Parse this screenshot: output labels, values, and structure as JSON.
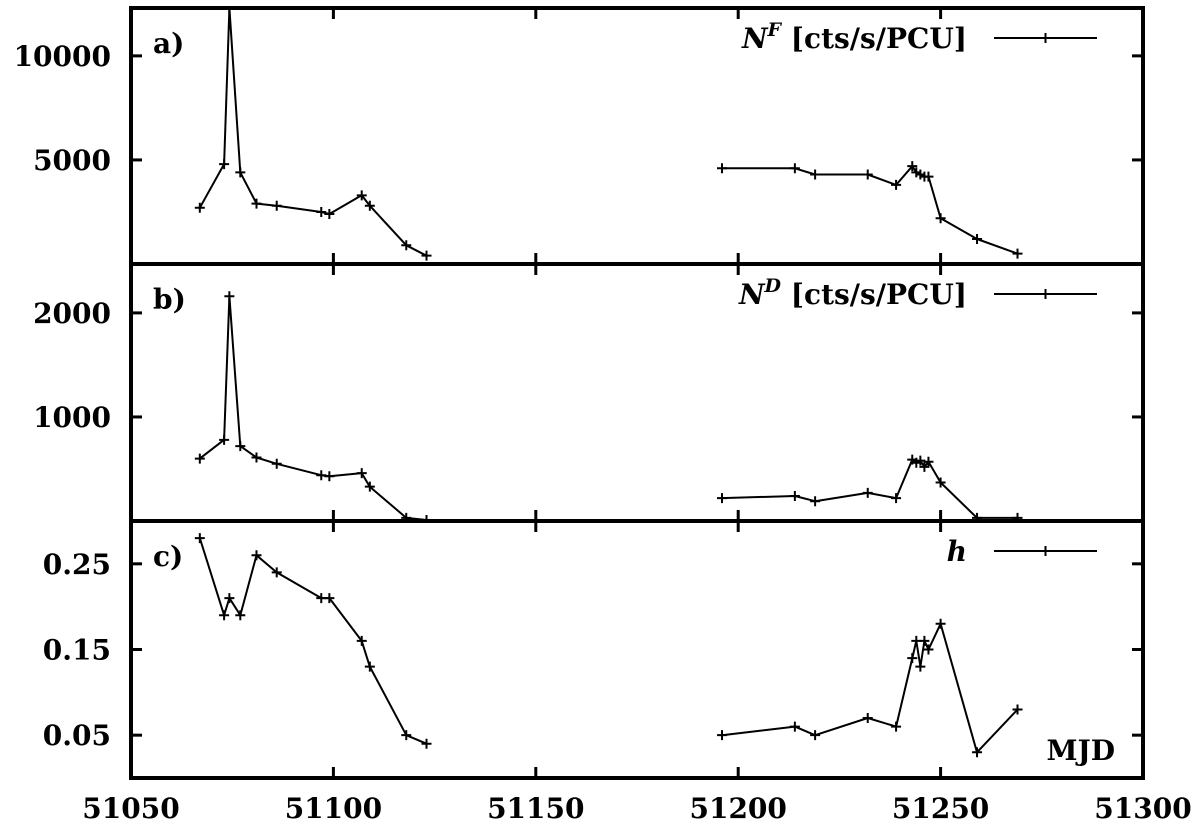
{
  "chart_data": [
    {
      "panel": "a",
      "type": "line",
      "panel_label": "a)",
      "legend": {
        "symbol": "N",
        "superscript": "F",
        "unit": " [cts/s/PCU]",
        "position": "top-right"
      },
      "ylim": [
        0,
        12300
      ],
      "yticks": [
        5000,
        10000
      ],
      "ytick_labels": [
        "5000",
        "10000"
      ],
      "segments": [
        [
          [
            51067,
            2700
          ],
          [
            51073,
            4800
          ],
          [
            51074.3,
            12300
          ],
          [
            51077,
            4400
          ],
          [
            51081,
            2900
          ],
          [
            51086,
            2800
          ],
          [
            51097,
            2500
          ],
          [
            51099,
            2400
          ],
          [
            51107,
            3300
          ],
          [
            51109,
            2800
          ],
          [
            51118,
            900
          ],
          [
            51123,
            400
          ]
        ],
        [
          [
            51196,
            4600
          ],
          [
            51214,
            4600
          ],
          [
            51219,
            4300
          ],
          [
            51232,
            4300
          ],
          [
            51239,
            3800
          ],
          [
            51243,
            4700
          ],
          [
            51244,
            4400
          ],
          [
            51245,
            4300
          ],
          [
            51246,
            4200
          ],
          [
            51247,
            4200
          ],
          [
            51250,
            2200
          ],
          [
            51259,
            1200
          ],
          [
            51269,
            500
          ]
        ]
      ]
    },
    {
      "panel": "b",
      "type": "line",
      "panel_label": "b)",
      "legend": {
        "symbol": "N",
        "superscript": "D",
        "unit": " [cts/s/PCU]",
        "position": "top-right"
      },
      "ylim": [
        0,
        2470
      ],
      "yticks": [
        1000,
        2000
      ],
      "ytick_labels": [
        "1000",
        "2000"
      ],
      "segments": [
        [
          [
            51067,
            600
          ],
          [
            51073,
            780
          ],
          [
            51074.3,
            2160
          ],
          [
            51077,
            720
          ],
          [
            51081,
            610
          ],
          [
            51086,
            550
          ],
          [
            51097,
            440
          ],
          [
            51099,
            430
          ],
          [
            51107,
            460
          ],
          [
            51109,
            330
          ],
          [
            51118,
            30
          ],
          [
            51123,
            10
          ]
        ],
        [
          [
            51196,
            220
          ],
          [
            51214,
            240
          ],
          [
            51219,
            190
          ],
          [
            51232,
            270
          ],
          [
            51239,
            220
          ],
          [
            51243,
            590
          ],
          [
            51244,
            560
          ],
          [
            51245,
            580
          ],
          [
            51246,
            520
          ],
          [
            51247,
            570
          ],
          [
            51250,
            370
          ],
          [
            51259,
            30
          ],
          [
            51269,
            30
          ]
        ]
      ]
    },
    {
      "panel": "c",
      "type": "line",
      "panel_label": "c)",
      "legend": {
        "symbol": "h",
        "position": "top-right"
      },
      "xlabel": "MJD",
      "xlim": [
        51050,
        51300
      ],
      "xticks": [
        51050,
        51100,
        51150,
        51200,
        51250,
        51300
      ],
      "xtick_labels": [
        "51050",
        "51100",
        "51150",
        "51200",
        "51250",
        "51300"
      ],
      "ylim": [
        0.0,
        0.3
      ],
      "yticks": [
        0.05,
        0.15,
        0.25
      ],
      "ytick_labels": [
        "0.05",
        "0.15",
        "0.25"
      ],
      "segments": [
        [
          [
            51067,
            0.28
          ],
          [
            51073,
            0.19
          ],
          [
            51074.3,
            0.21
          ],
          [
            51077,
            0.19
          ],
          [
            51081,
            0.26
          ],
          [
            51086,
            0.24
          ],
          [
            51097,
            0.21
          ],
          [
            51099,
            0.21
          ],
          [
            51107,
            0.16
          ],
          [
            51109,
            0.13
          ],
          [
            51118,
            0.05
          ],
          [
            51123,
            0.04
          ]
        ],
        [
          [
            51196,
            0.05
          ],
          [
            51214,
            0.06
          ],
          [
            51219,
            0.05
          ],
          [
            51232,
            0.07
          ],
          [
            51239,
            0.06
          ],
          [
            51243,
            0.14
          ],
          [
            51244,
            0.16
          ],
          [
            51245,
            0.13
          ],
          [
            51246,
            0.16
          ],
          [
            51247,
            0.15
          ],
          [
            51250,
            0.18
          ],
          [
            51259,
            0.03
          ],
          [
            51269,
            0.08
          ]
        ]
      ]
    }
  ]
}
